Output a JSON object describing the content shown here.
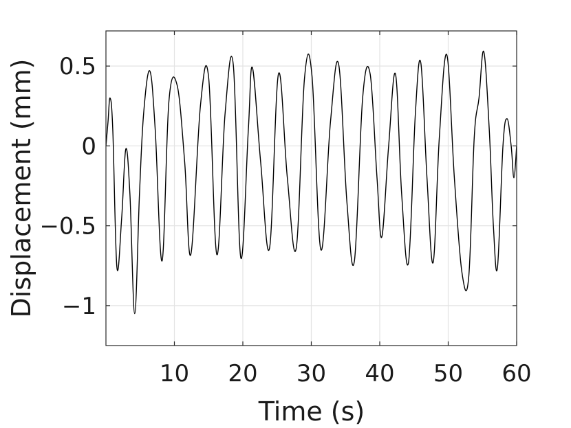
{
  "chart_data": {
    "type": "line",
    "title": "",
    "xlabel": "Time (s)",
    "ylabel": "Displacement (mm)",
    "xlim": [
      0,
      60
    ],
    "ylim": [
      -1.25,
      0.72
    ],
    "xticks": [
      10,
      20,
      30,
      40,
      50,
      60
    ],
    "xtick_labels": [
      "10",
      "20",
      "30",
      "40",
      "50",
      "60"
    ],
    "yticks": [
      -1,
      -0.5,
      0,
      0.5
    ],
    "ytick_labels": [
      "−1",
      "−0.5",
      "0",
      "0.5"
    ],
    "grid": true,
    "line_color": "#000000",
    "series": [
      {
        "x": [
          0.0,
          0.3,
          0.6,
          1.0,
          1.6,
          2.3,
          2.9,
          3.5,
          4.2,
          4.9,
          5.5,
          6.4,
          7.2,
          8.2,
          9.2,
          10.4,
          11.5,
          12.4,
          13.8,
          15.0,
          16.2,
          17.4,
          18.6,
          19.7,
          20.8,
          21.4,
          22.6,
          23.9,
          25.2,
          26.5,
          27.8,
          29.0,
          30.1,
          31.4,
          32.8,
          34.0,
          35.2,
          36.3,
          37.5,
          38.6,
          39.6,
          40.3,
          41.3,
          42.3,
          43.2,
          44.2,
          45.2,
          46.0,
          46.9,
          47.8,
          48.7,
          49.8,
          50.9,
          52.0,
          53.0,
          53.8,
          54.5,
          55.2,
          56.0,
          56.6,
          57.2,
          58.0,
          58.6,
          59.2,
          59.6,
          60.0
        ],
        "y": [
          0.0,
          0.15,
          0.3,
          0.1,
          -0.76,
          -0.45,
          -0.02,
          -0.3,
          -1.05,
          -0.3,
          0.2,
          0.47,
          0.1,
          -0.72,
          0.28,
          0.38,
          -0.1,
          -0.68,
          0.25,
          0.43,
          -0.68,
          0.2,
          0.51,
          -0.7,
          0.1,
          0.49,
          -0.1,
          -0.64,
          0.45,
          -0.2,
          -0.64,
          0.42,
          0.44,
          -0.65,
          0.15,
          0.51,
          -0.35,
          -0.72,
          0.3,
          0.45,
          -0.2,
          -0.57,
          0.0,
          0.45,
          -0.3,
          -0.73,
          0.2,
          0.52,
          -0.2,
          -0.73,
          0.05,
          0.57,
          -0.2,
          -0.79,
          -0.82,
          0.05,
          0.3,
          0.59,
          0.1,
          -0.5,
          -0.76,
          0.0,
          0.17,
          0.0,
          -0.2,
          0.0
        ]
      }
    ]
  }
}
